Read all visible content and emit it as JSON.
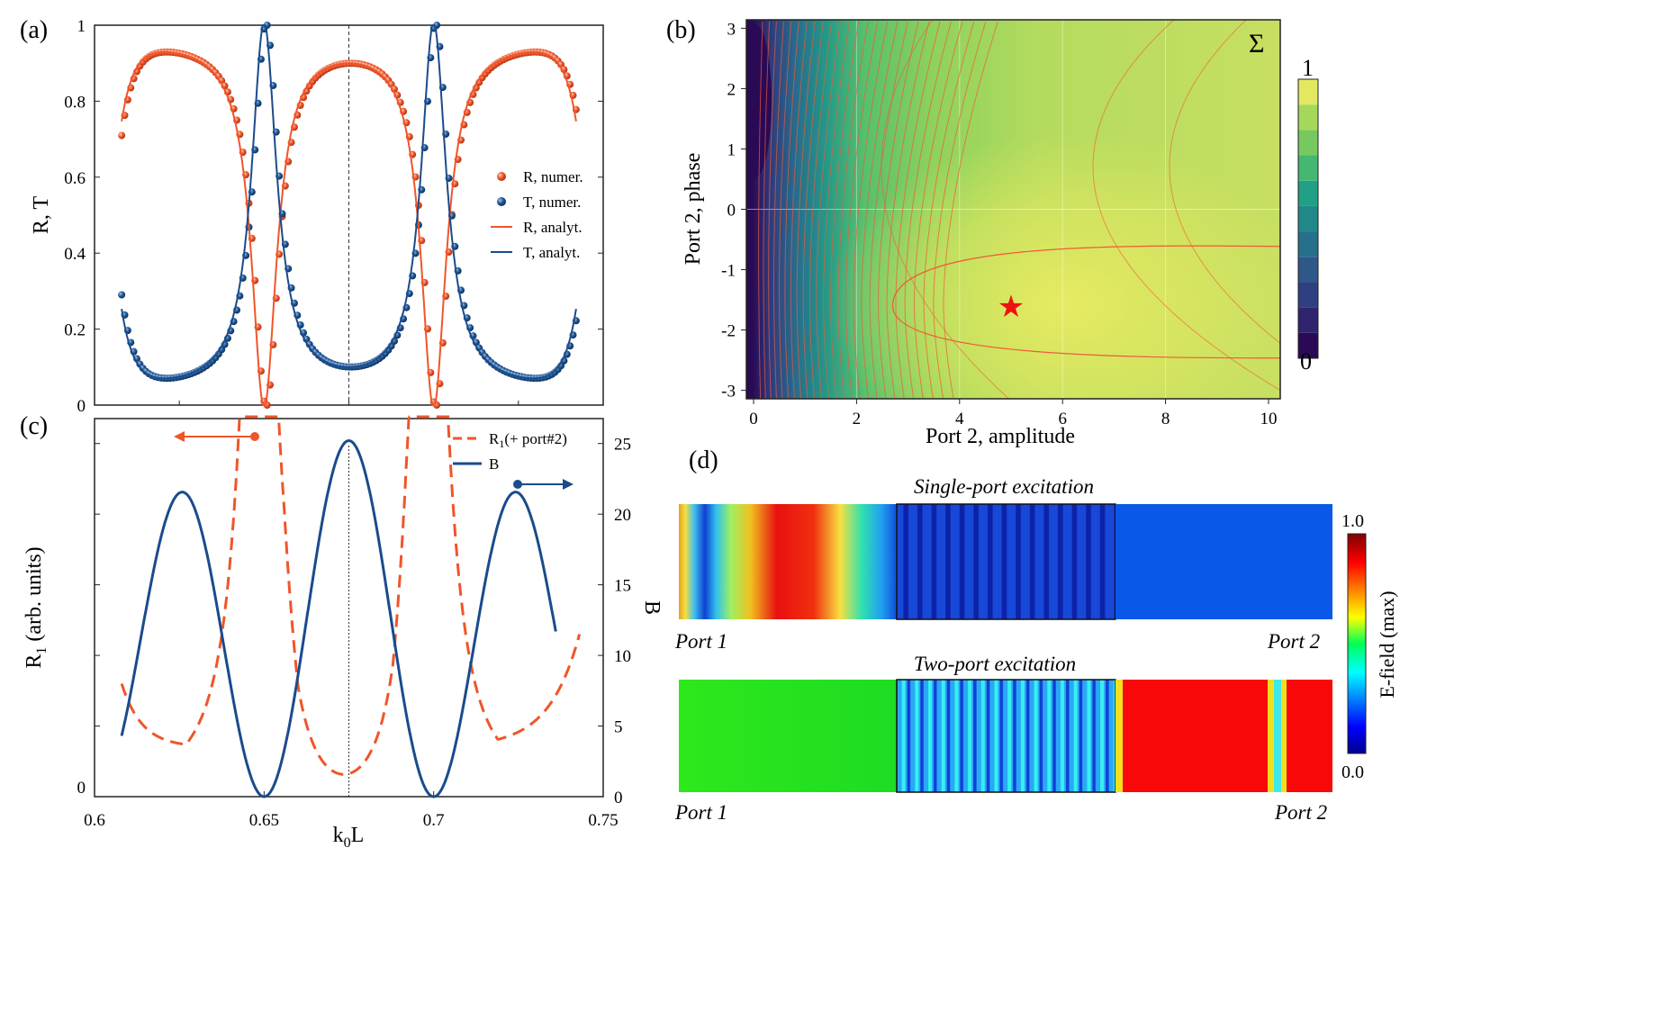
{
  "panel_labels": {
    "a": "(a)",
    "b": "(b)",
    "c": "(c)",
    "d": "(d)"
  },
  "colors": {
    "R": "#f0552a",
    "T": "#1a4b8c",
    "contour": "#f05a3a",
    "star": "#ee1111",
    "cmap_low": "#2a0a55",
    "cmap_high": "#e9ec62"
  },
  "chart_data": [
    {
      "id": "a",
      "type": "scatter+line",
      "title": "",
      "xlabel": "",
      "ylabel": "R, T",
      "xlim": [
        0.6,
        0.75
      ],
      "ylim": [
        0,
        1
      ],
      "yticks": [
        "0",
        "0.2",
        "0.4",
        "0.6",
        "0.8",
        "1"
      ],
      "resonances": [
        0.65,
        0.7
      ],
      "center_line": 0.675,
      "x_range": [
        0.608,
        0.742
      ],
      "baseline_T": 0.04,
      "peak_R": 0.96,
      "series": [
        {
          "name": "R, numer.",
          "style": "markers",
          "color": "#f0552a"
        },
        {
          "name": "T, numer.",
          "style": "markers",
          "color": "#1a4b8c"
        },
        {
          "name": "R, analyt.",
          "style": "line",
          "color": "#f0552a"
        },
        {
          "name": "T, analyt.",
          "style": "line",
          "color": "#1a4b8c"
        }
      ],
      "legend": "right"
    },
    {
      "id": "b",
      "type": "contour",
      "xlabel": "Port 2, amplitude",
      "ylabel": "Port 2, phase",
      "xlim": [
        0,
        10
      ],
      "ylim": [
        -3.14,
        3.14
      ],
      "xticks": [
        "0",
        "2",
        "4",
        "6",
        "8",
        "10"
      ],
      "yticks": [
        "-3",
        "-2",
        "-1",
        "0",
        "1",
        "2",
        "3"
      ],
      "annotation": "Σ",
      "colorbar": {
        "max_label": "1",
        "min_label": "0",
        "levels": 11
      },
      "optimum": {
        "amplitude": 5.0,
        "phase": -1.6,
        "marker": "★"
      },
      "valley": {
        "amplitude": 0.0,
        "phase": 1.6
      }
    },
    {
      "id": "c",
      "type": "line",
      "xlabel": "k",
      "xlabel_sub": "0",
      "xlabel_tail": "L",
      "ylabel_left": "R",
      "ylabel_left_sub": "1",
      "ylabel_left_tail": " (arb. units)",
      "ylabel_right": "B",
      "xlim": [
        0.6,
        0.75
      ],
      "xticks": [
        "0.6",
        "0.65",
        "0.7",
        "0.75"
      ],
      "yticks_left": [
        "0"
      ],
      "ylim_right": [
        0,
        26
      ],
      "yticks_right": [
        "0",
        "5",
        "10",
        "15",
        "20",
        "25"
      ],
      "center_line": 0.675,
      "series": [
        {
          "name": "R",
          "name_sub": "1",
          "name_tail": "(+ port#2)",
          "style": "dashed",
          "color": "#f0552a",
          "axis": "left"
        },
        {
          "name": "B",
          "style": "solid",
          "color": "#1a4b8c",
          "axis": "right",
          "peaks": [
            {
              "x": 0.625,
              "y": 21.5
            },
            {
              "x": 0.675,
              "y": 25.2
            },
            {
              "x": 0.725,
              "y": 21.5
            }
          ],
          "zeros": [
            0.65,
            0.7
          ]
        }
      ]
    },
    {
      "id": "d",
      "type": "heatmap",
      "colorbar": {
        "label": "E-field (max)",
        "max": "1.0",
        "min": "0.0"
      },
      "rows": [
        {
          "title": "Single-port excitation",
          "left_port": "Port 1",
          "right_port": "Port 2"
        },
        {
          "title": "Two-port excitation",
          "left_port": "Port 1",
          "right_port": "Port 2"
        }
      ]
    }
  ]
}
